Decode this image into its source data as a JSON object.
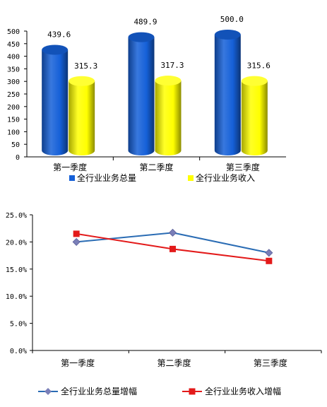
{
  "chart_data": [
    {
      "type": "bar",
      "categories": [
        "第一季度",
        "第二季度",
        "第三季度"
      ],
      "series": [
        {
          "name": "全行业业务总量",
          "values": [
            439.6,
            489.9,
            500.0
          ],
          "labels": [
            "439.6",
            "489.9",
            "500.0"
          ],
          "color": "#1560d8"
        },
        {
          "name": "全行业业务收入",
          "values": [
            315.3,
            317.3,
            315.6
          ],
          "labels": [
            "315.3",
            "317.3",
            "315.6"
          ],
          "color": "#ffff00"
        }
      ],
      "ylim": [
        0,
        500
      ],
      "yticks": [
        "0",
        "50",
        "100",
        "150",
        "200",
        "250",
        "300",
        "350",
        "400",
        "450",
        "500"
      ],
      "legend": "bottom",
      "grid": false,
      "style": "3d-cylinder"
    },
    {
      "type": "line",
      "categories": [
        "第一季度",
        "第二季度",
        "第三季度"
      ],
      "series": [
        {
          "name": "全行业业务总量增幅",
          "values": [
            20.0,
            21.7,
            18.0
          ],
          "color": "#2a6cb4",
          "marker": "diamond"
        },
        {
          "name": "全行业业务收入增幅",
          "values": [
            21.5,
            18.7,
            16.5
          ],
          "color": "#e31a1a",
          "marker": "square"
        }
      ],
      "ylim": [
        0,
        25
      ],
      "yticks": [
        "0.0%",
        "5.0%",
        "10.0%",
        "15.0%",
        "20.0%",
        "25.0%"
      ],
      "legend": "bottom",
      "grid": false
    }
  ]
}
